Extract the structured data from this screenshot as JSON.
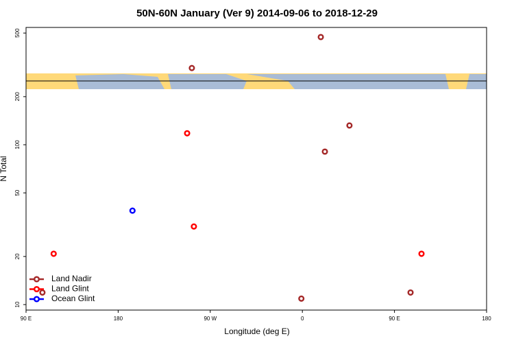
{
  "chart_data": {
    "type": "scatter",
    "title": "50N-60N January (Ver 9)   2014-09-06 to 2018-12-29",
    "x_label": "Longitude (deg E)",
    "y_label": "N Total",
    "xlim": [
      -270,
      180
    ],
    "xticks": [
      {
        "value": -270,
        "label": "90 E"
      },
      {
        "value": -180,
        "label": "180"
      },
      {
        "value": -90,
        "label": "90 W"
      },
      0,
      {
        "value": 90,
        "label": "90 E"
      },
      180
    ],
    "ylim": [
      9.24,
      542
    ],
    "yticks": [
      10,
      20,
      50,
      100,
      200,
      500
    ],
    "log_y": true,
    "legend": "bottom-left",
    "series": [
      {
        "name": "Land Nadir",
        "color": "#a52a2a",
        "x": [
          18,
          -108,
          46,
          22,
          -254,
          -1,
          105.7
        ],
        "values": [
          472,
          302,
          132,
          90.6,
          11.9,
          10.9,
          11.9
        ]
      },
      {
        "name": "Land Glint",
        "color": "#ff0000",
        "x": [
          -112.6,
          -106,
          -243,
          116.4
        ],
        "values": [
          118,
          30.8,
          20.8,
          20.8
        ]
      },
      {
        "name": "Ocean Glint",
        "color": "#0000ff",
        "x": [
          -166
        ],
        "values": [
          38.7
        ]
      }
    ]
  }
}
